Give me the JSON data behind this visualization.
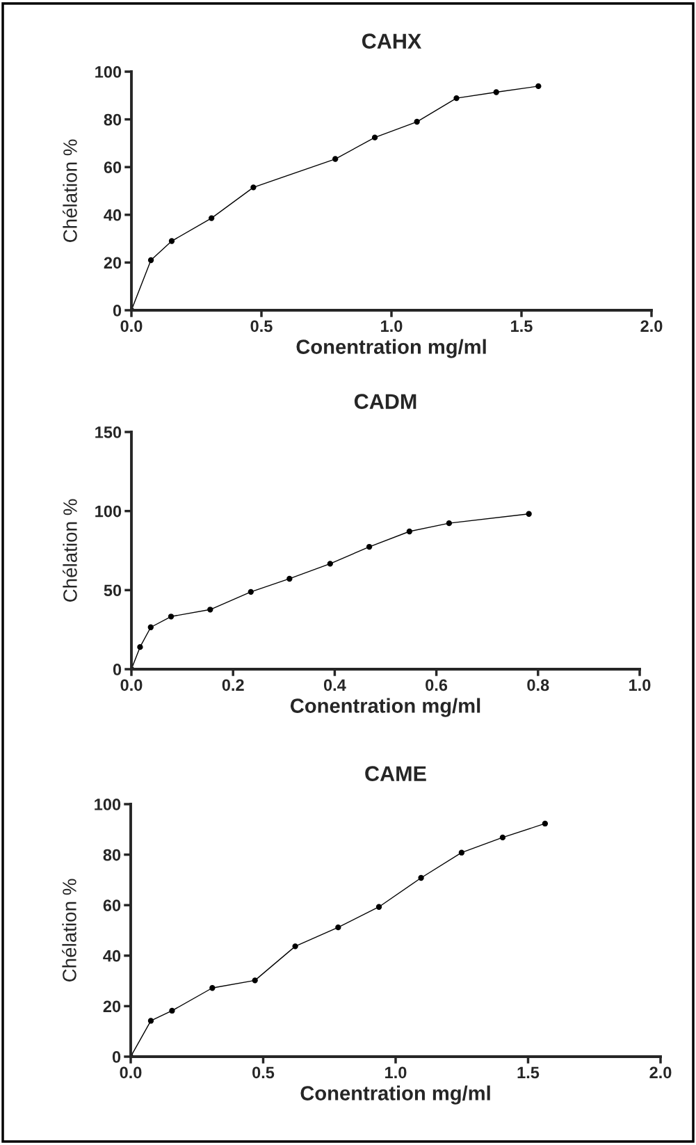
{
  "chart_data": [
    {
      "type": "line",
      "title": "CAHX",
      "xlabel": "Conentration mg/ml",
      "ylabel": "Chélation %",
      "marker": "circle",
      "line_style": "solid",
      "grid": false,
      "legend": false,
      "xlim": [
        0,
        2.0
      ],
      "xticks": [
        {
          "value": 0,
          "label": "0.0"
        },
        0.5,
        {
          "value": 1,
          "label": "1.0"
        },
        1.5,
        {
          "value": 2,
          "label": "2.0"
        }
      ],
      "ylim": [
        0,
        100
      ],
      "yticks": [
        0,
        20,
        40,
        60,
        80,
        100
      ],
      "series": [
        {
          "color": "#000000",
          "x": [
            0,
            0.075,
            0.155,
            0.308,
            0.469,
            0.784,
            0.936,
            1.098,
            1.25,
            1.403,
            1.565
          ],
          "values": [
            0,
            21.0,
            29.0,
            38.6,
            51.5,
            63.4,
            72.4,
            79.0,
            88.9,
            91.4,
            93.9
          ]
        }
      ]
    },
    {
      "type": "line",
      "title": "CADM",
      "xlabel": "Conentration mg/ml",
      "ylabel": "Chélation %",
      "marker": "circle",
      "line_style": "solid",
      "grid": false,
      "legend": false,
      "xlim": [
        0,
        1.0
      ],
      "xticks": [
        {
          "value": 0,
          "label": "0.0"
        },
        0.2,
        0.4,
        0.6,
        0.8,
        {
          "value": 1,
          "label": "1.0"
        }
      ],
      "ylim": [
        0,
        150
      ],
      "yticks": [
        0,
        50,
        100,
        150
      ],
      "series": [
        {
          "color": "#000000",
          "x": [
            0,
            0.017,
            0.038,
            0.078,
            0.155,
            0.235,
            0.311,
            0.391,
            0.468,
            0.547,
            0.625,
            0.782
          ],
          "values": [
            0,
            14.0,
            26.5,
            33.3,
            37.7,
            48.9,
            57.2,
            66.7,
            77.4,
            87.1,
            92.3,
            98.2
          ]
        }
      ]
    },
    {
      "type": "line",
      "title": "CAME",
      "xlabel": "Conentration mg/ml",
      "ylabel": "Chélation %",
      "marker": "circle",
      "line_style": "solid",
      "grid": false,
      "legend": false,
      "xlim": [
        0,
        2.0
      ],
      "xticks": [
        {
          "value": 0,
          "label": "0.0"
        },
        0.5,
        {
          "value": 1,
          "label": "1.0"
        },
        1.5,
        {
          "value": 2,
          "label": "2.0"
        }
      ],
      "ylim": [
        0,
        100
      ],
      "yticks": [
        0,
        20,
        40,
        60,
        80,
        100
      ],
      "series": [
        {
          "color": "#000000",
          "x": [
            0,
            0.076,
            0.156,
            0.308,
            0.469,
            0.621,
            0.783,
            0.937,
            1.096,
            1.249,
            1.404,
            1.564
          ],
          "values": [
            0,
            14.2,
            18.2,
            27.2,
            30.2,
            43.7,
            51.2,
            59.3,
            70.8,
            80.8,
            86.8,
            92.3
          ]
        }
      ]
    }
  ]
}
